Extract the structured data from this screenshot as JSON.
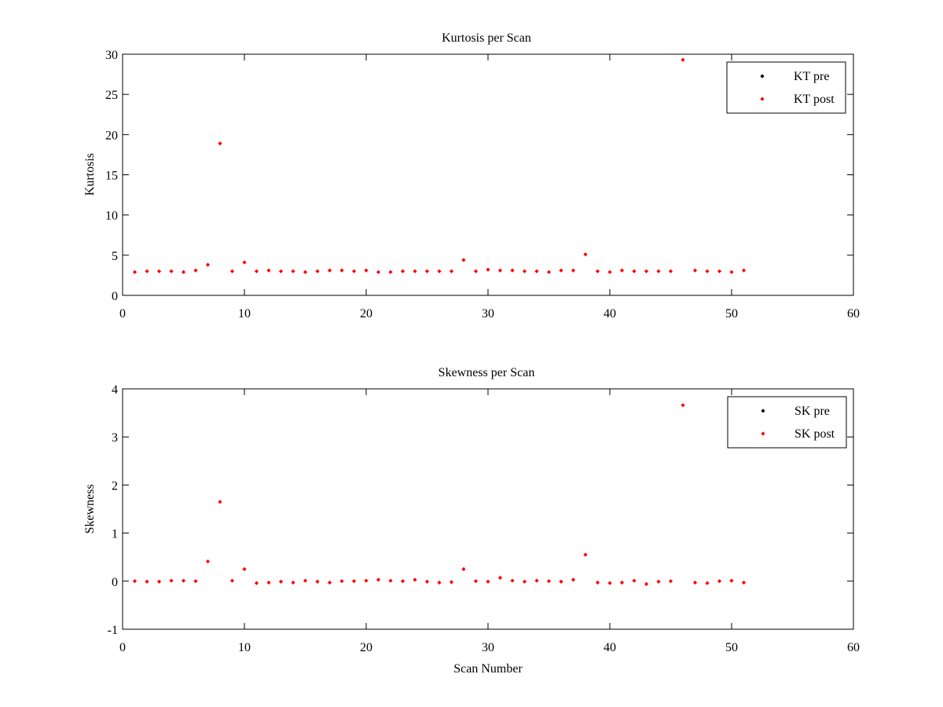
{
  "chart_data": [
    {
      "type": "scatter",
      "title": "Kurtosis per Scan",
      "xlabel": "",
      "ylabel": "Kurtosis",
      "xlim": [
        0,
        60
      ],
      "ylim": [
        0,
        30
      ],
      "xticks": [
        0,
        10,
        20,
        30,
        40,
        50,
        60
      ],
      "yticks": [
        0,
        5,
        10,
        15,
        20,
        25,
        30
      ],
      "grid": false,
      "legend": "top-right",
      "series": [
        {
          "name": "KT pre",
          "color": "#000000",
          "x": [],
          "y": []
        },
        {
          "name": "KT post",
          "color": "#ff0000",
          "x": [
            1,
            2,
            3,
            4,
            5,
            6,
            7,
            8,
            9,
            10,
            11,
            12,
            13,
            14,
            15,
            16,
            17,
            18,
            19,
            20,
            21,
            22,
            23,
            24,
            25,
            26,
            27,
            28,
            29,
            30,
            31,
            32,
            33,
            34,
            35,
            36,
            37,
            38,
            39,
            40,
            41,
            42,
            43,
            44,
            45,
            46,
            47,
            48,
            49,
            50,
            51
          ],
          "y": [
            2.9,
            3.0,
            3.0,
            3.0,
            2.9,
            3.1,
            3.8,
            18.9,
            3.0,
            4.1,
            3.0,
            3.1,
            3.0,
            3.0,
            2.9,
            3.0,
            3.1,
            3.1,
            3.0,
            3.1,
            2.9,
            2.9,
            3.0,
            3.0,
            3.0,
            3.0,
            3.0,
            4.4,
            3.0,
            3.2,
            3.1,
            3.1,
            3.0,
            3.0,
            2.9,
            3.1,
            3.1,
            5.1,
            3.0,
            2.9,
            3.1,
            3.0,
            3.0,
            3.0,
            3.0,
            29.3,
            3.1,
            3.0,
            3.0,
            2.9,
            3.1
          ]
        }
      ]
    },
    {
      "type": "scatter",
      "title": "Skewness per Scan",
      "xlabel": "Scan Number",
      "ylabel": "Skewness",
      "xlim": [
        0,
        60
      ],
      "ylim": [
        -1,
        4
      ],
      "xticks": [
        0,
        10,
        20,
        30,
        40,
        50,
        60
      ],
      "yticks": [
        -1,
        0,
        1,
        2,
        3,
        4
      ],
      "grid": false,
      "legend": "top-right",
      "series": [
        {
          "name": "SK pre",
          "color": "#000000",
          "x": [],
          "y": []
        },
        {
          "name": "SK post",
          "color": "#ff0000",
          "x": [
            1,
            2,
            3,
            4,
            5,
            6,
            7,
            8,
            9,
            10,
            11,
            12,
            13,
            14,
            15,
            16,
            17,
            18,
            19,
            20,
            21,
            22,
            23,
            24,
            25,
            26,
            27,
            28,
            29,
            30,
            31,
            32,
            33,
            34,
            35,
            36,
            37,
            38,
            39,
            40,
            41,
            42,
            43,
            44,
            45,
            46,
            47,
            48,
            49,
            50,
            51
          ],
          "y": [
            0.0,
            -0.01,
            -0.01,
            0.01,
            0.01,
            0.0,
            0.41,
            1.65,
            0.01,
            0.25,
            -0.04,
            -0.03,
            -0.01,
            -0.03,
            0.01,
            -0.01,
            -0.03,
            0.0,
            0.0,
            0.01,
            0.03,
            0.01,
            0.0,
            0.03,
            -0.01,
            -0.03,
            -0.02,
            0.25,
            0.0,
            -0.01,
            0.07,
            0.01,
            -0.01,
            0.01,
            0.0,
            -0.01,
            0.03,
            0.55,
            -0.03,
            -0.04,
            -0.03,
            0.01,
            -0.06,
            -0.01,
            0.0,
            3.66,
            -0.03,
            -0.04,
            0.0,
            0.01,
            -0.03
          ]
        }
      ]
    }
  ]
}
